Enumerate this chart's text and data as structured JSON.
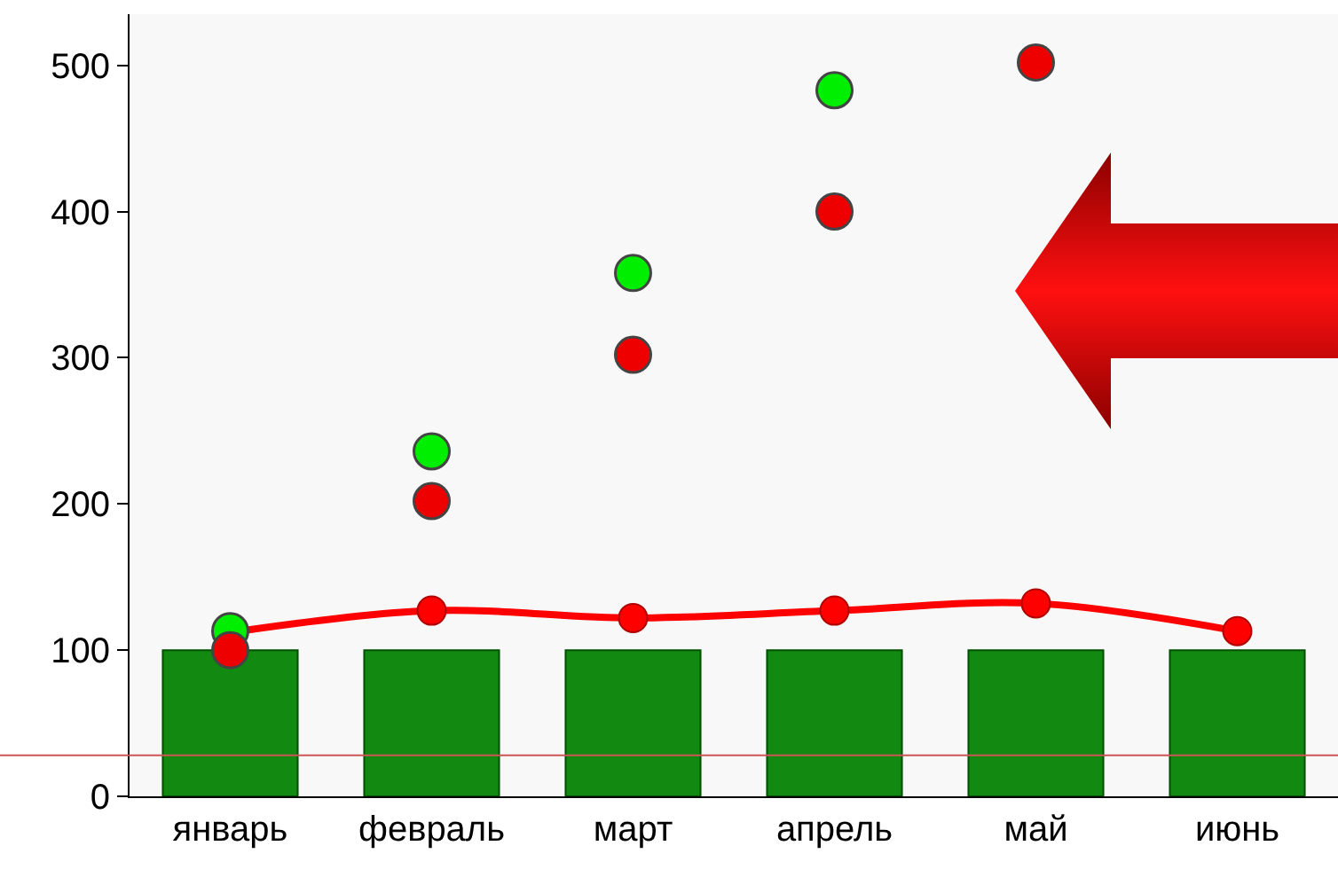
{
  "chart_data": {
    "type": "bar",
    "categories": [
      "январь",
      "февраль",
      "март",
      "апрель",
      "май",
      "июнь"
    ],
    "series": [
      {
        "color": "#128a12",
        "values": [
          100,
          100,
          100,
          100,
          100,
          100
        ]
      },
      {
        "type": "line",
        "color": "#ff0000",
        "values": [
          112,
          127,
          122,
          127,
          132,
          113
        ]
      },
      {
        "type": "scatter",
        "color": "#00ee00",
        "values": [
          113,
          236,
          358,
          483,
          null,
          null
        ]
      },
      {
        "type": "scatter",
        "color": "#ee0000",
        "values": [
          100,
          202,
          302,
          400,
          502,
          null
        ]
      }
    ],
    "ylim": [
      0,
      535
    ],
    "yticks": [
      0,
      100,
      200,
      300,
      400,
      500
    ],
    "ref_lines": [
      {
        "axis": "y",
        "value": 28,
        "color": "#cc5555"
      }
    ],
    "marker": "circle",
    "grid": false,
    "legend": false
  }
}
